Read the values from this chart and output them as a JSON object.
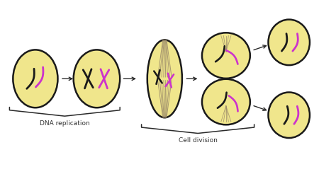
{
  "bg_color": "#ffffff",
  "cell_fill": "#f0e68c",
  "cell_edge": "#1a1a1a",
  "black_chrom": "#1a1a1a",
  "purple_chrom": "#cc33cc",
  "spindle_color": "#9b8a6a",
  "arrow_color": "#2a2a2a",
  "brace_color": "#2a2a2a",
  "label_dna": "DNA replication",
  "label_cell": "Cell division",
  "label_fontsize": 6.5
}
